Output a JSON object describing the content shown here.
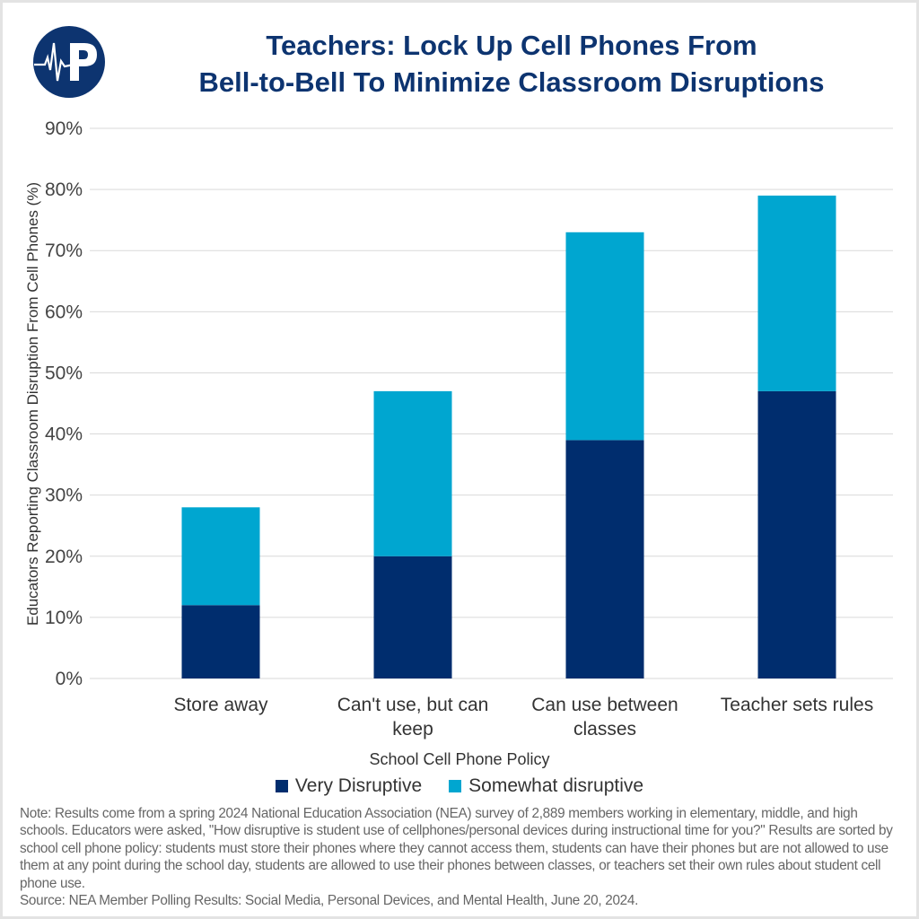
{
  "title_line1": "Teachers: Lock Up Cell Phones From",
  "title_line2": "Bell-to-Bell To Minimize Classroom Disruptions",
  "logo_text": "P",
  "chart_data": {
    "type": "bar",
    "stacked": true,
    "title": "Teachers: Lock Up Cell Phones From Bell-to-Bell To Minimize Classroom Disruptions",
    "xlabel": "School Cell Phone Policy",
    "ylabel": "Educators Reporting Classroom Disruption From Cell Phones (%)",
    "categories": [
      "Store away",
      "Can't use, but can keep",
      "Can use between classes",
      "Teacher sets rules"
    ],
    "category_lines": [
      [
        "Store away"
      ],
      [
        "Can't use, but can",
        "keep"
      ],
      [
        "Can use between",
        "classes"
      ],
      [
        "Teacher sets rules"
      ]
    ],
    "series": [
      {
        "name": "Very Disruptive",
        "values": [
          12,
          20,
          39,
          47
        ],
        "color": "#002d6e"
      },
      {
        "name": "Somewhat disruptive",
        "values": [
          16,
          27,
          34,
          32
        ],
        "color": "#00a6d0"
      }
    ],
    "ylim": [
      0,
      90
    ],
    "yticks": [
      "0%",
      "10%",
      "20%",
      "30%",
      "40%",
      "50%",
      "60%",
      "70%",
      "80%",
      "90%"
    ],
    "grid": true,
    "legend": "bottom"
  },
  "note": "Note: Results come from a spring 2024 National Education Association (NEA) survey of 2,889 members working in elementary, middle, and high schools. Educators were asked, \"How disruptive is student use of cellphones/personal devices during instructional time for you?\" Results are sorted by school cell phone policy: students must store their phones where they cannot access them, students can have their phones but are not allowed to use them at any point during the school day, students are allowed to use their phones between classes, or teachers set their own rules about student cell phone use.",
  "source": "Source: NEA Member Polling Results: Social Media, Personal Devices, and Mental Health, June 20, 2024."
}
